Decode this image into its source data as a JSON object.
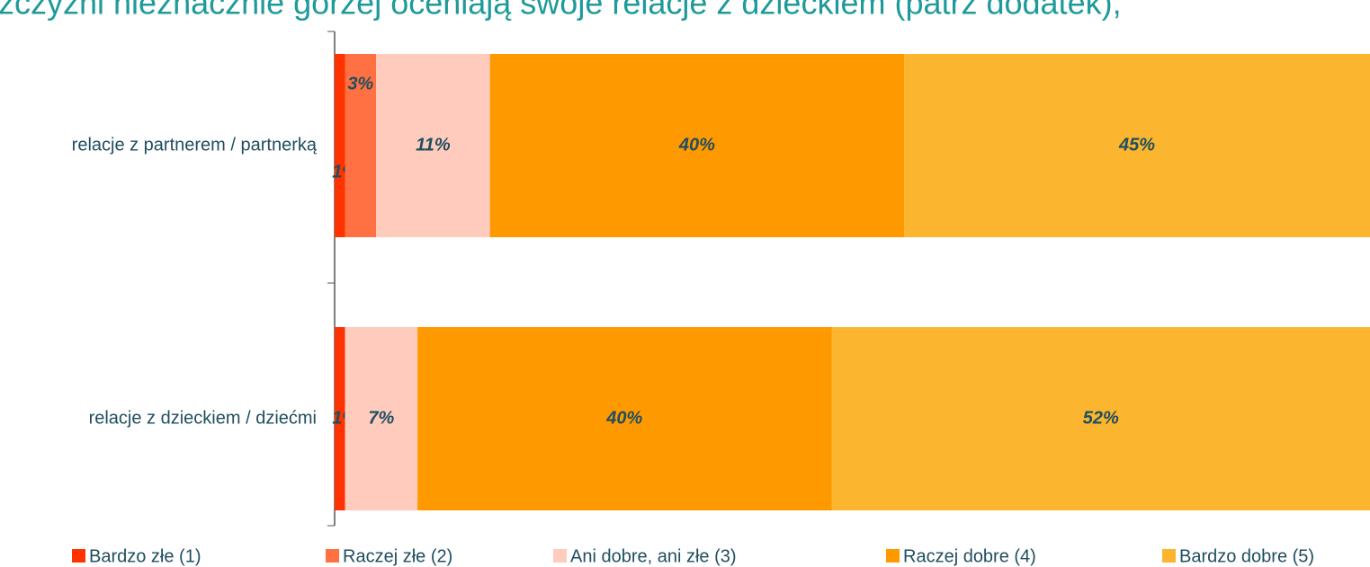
{
  "chart_data": {
    "type": "stacked-bar-horizontal",
    "title": "zczyźni nieznacznie gorzej oceniają swoje relacje z dzieckiem (patrz dodatek),",
    "categories": [
      "relacje z partnerem / partnerką",
      "relacje z dzieckiem / dziećmi"
    ],
    "series": [
      {
        "name": "Bardzo złe (1)",
        "color": "#ff3300",
        "values": [
          1,
          1
        ],
        "value_labels": [
          "1%",
          "1%"
        ]
      },
      {
        "name": "Raczej złe (2)",
        "color": "#ff7043",
        "values": [
          3,
          0
        ],
        "value_labels": [
          "3%",
          null
        ]
      },
      {
        "name": "Ani dobre, ani złe (3)",
        "color": "#ffcbbd",
        "values": [
          11,
          7
        ],
        "value_labels": [
          "11%",
          "7%"
        ]
      },
      {
        "name": "Raczej dobre (4)",
        "color": "#ff9900",
        "values": [
          40,
          40
        ],
        "value_labels": [
          "40%",
          "40%"
        ]
      },
      {
        "name": "Bardzo dobre (5)",
        "color": "#fbb52f",
        "values": [
          45,
          52
        ],
        "value_labels": [
          "45%",
          "52%"
        ]
      }
    ],
    "xlim": [
      0,
      100
    ]
  }
}
